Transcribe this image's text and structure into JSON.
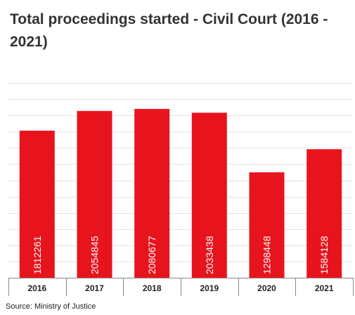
{
  "chart_data": {
    "type": "bar",
    "title": "Total proceedings started - Civil Court (2016 - 2021)",
    "categories": [
      "2016",
      "2017",
      "2018",
      "2019",
      "2020",
      "2021"
    ],
    "values": [
      1812261,
      2054845,
      2080677,
      2033438,
      1298448,
      1584128
    ],
    "value_labels": [
      "1812261",
      "2054845",
      "2080677",
      "2033438",
      "1298448",
      "1584128"
    ],
    "ylim": [
      0,
      2400000
    ],
    "grid": true,
    "colors": {
      "bar": "#e8141d",
      "bar_label": "#ffffff",
      "grid": "#e3e3e3",
      "axis": "#888888"
    },
    "source": "Source: Ministry of Justice"
  }
}
